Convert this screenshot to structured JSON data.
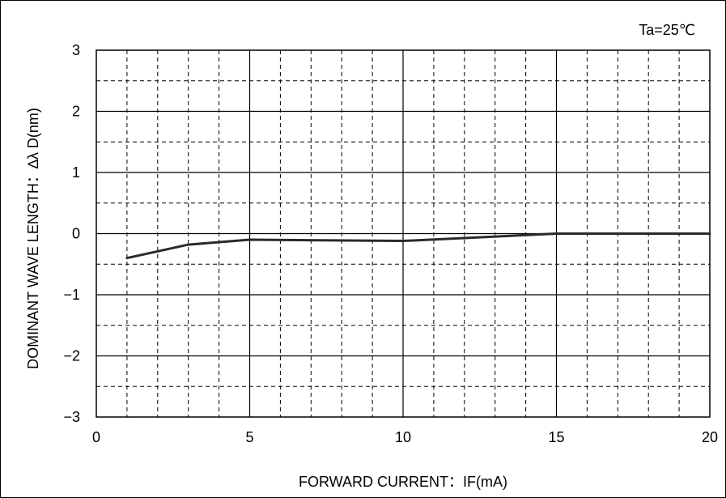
{
  "chart_data": {
    "type": "line",
    "title": "",
    "xlabel": "FORWARD CURRENT：IF(mA)",
    "ylabel": "DOMINANT WAVE LENGTH：∆λ D(nm)",
    "annotation": "Ta=25℃",
    "xlim": [
      0,
      20
    ],
    "ylim": [
      -3,
      3
    ],
    "x_major_ticks": [
      0,
      5,
      10,
      15,
      20
    ],
    "x_minor_step": 1,
    "y_major_ticks": [
      -3,
      -2,
      -1,
      0,
      1,
      2,
      3
    ],
    "y_minor_step": 0.5,
    "x_tick_labels": [
      "0",
      "5",
      "10",
      "15",
      "20"
    ],
    "y_tick_labels": [
      "−3",
      "−2",
      "−1",
      "0",
      "1",
      "2",
      "3"
    ],
    "grid": true,
    "series": [
      {
        "x": [
          1,
          3,
          5,
          10,
          15,
          20
        ],
        "y": [
          -0.4,
          -0.18,
          -0.1,
          -0.12,
          0.0,
          0.0
        ]
      }
    ],
    "colors": {
      "line": "#2a2a2a",
      "grid": "#000000",
      "background": "#ffffff"
    }
  }
}
